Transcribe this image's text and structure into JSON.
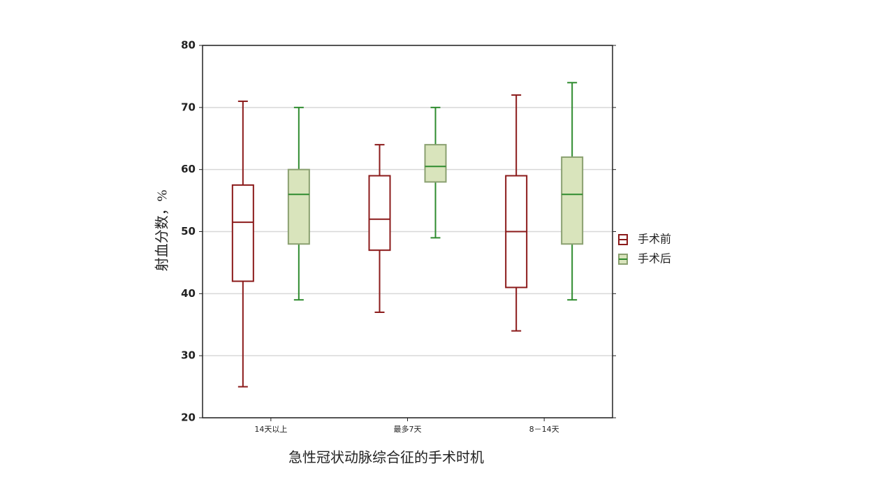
{
  "chart_data": {
    "type": "box",
    "y_label": "射血分数，%",
    "x_label": "急性冠状动脉综合征的手术时机",
    "categories": [
      "14天以上",
      "最多7天",
      "8－14天"
    ],
    "ylim": [
      20,
      80
    ],
    "yticks": [
      20,
      30,
      40,
      50,
      60,
      70,
      80
    ],
    "grid": true,
    "legend": "right",
    "series": [
      {
        "name": "手术前",
        "color": "#8b1a1a",
        "fill": "#ffffff",
        "min": [
          25,
          37,
          34
        ],
        "q1": [
          42,
          47,
          41
        ],
        "median": [
          51.5,
          52,
          50
        ],
        "q3": [
          57.5,
          59,
          59
        ],
        "max": [
          71,
          64,
          72
        ]
      },
      {
        "name": "手术后",
        "color": "#2e8b2e",
        "fill": "#d9e4bc",
        "min": [
          39,
          49,
          39
        ],
        "q1": [
          48,
          58,
          48
        ],
        "median": [
          56,
          60.5,
          56
        ],
        "q3": [
          60,
          64,
          62
        ],
        "max": [
          70,
          70,
          74
        ]
      }
    ]
  }
}
